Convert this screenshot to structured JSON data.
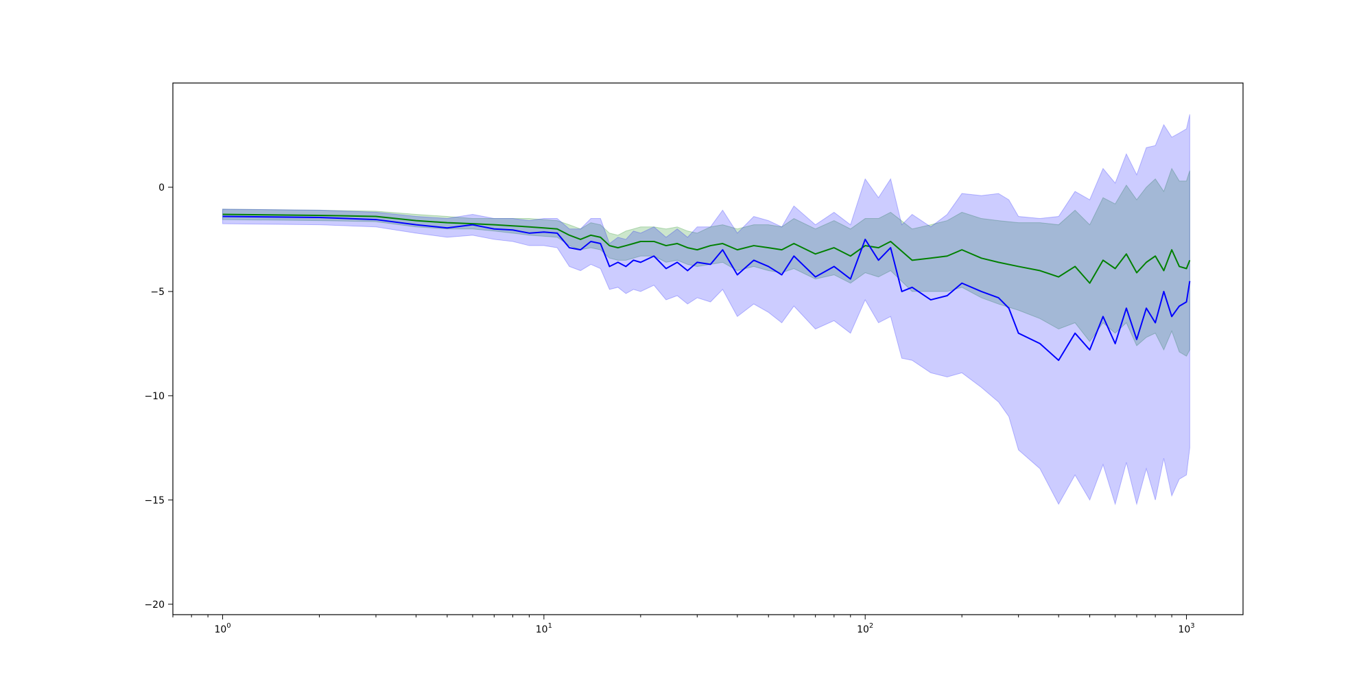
{
  "chart_data": {
    "type": "line",
    "title": "",
    "xlabel": "",
    "ylabel": "",
    "xscale": "log",
    "xlim": [
      0.7,
      1500
    ],
    "ylim": [
      -20.5,
      5.0
    ],
    "grid": false,
    "legend": "none",
    "x_ticks": [
      {
        "value": 1,
        "base": "10",
        "exp": "0"
      },
      {
        "value": 10,
        "base": "10",
        "exp": "1"
      },
      {
        "value": 100,
        "base": "10",
        "exp": "2"
      },
      {
        "value": 1000,
        "base": "10",
        "exp": "3"
      }
    ],
    "y_ticks": [
      {
        "value": 0,
        "label": "0"
      },
      {
        "value": -5,
        "label": "−5"
      },
      {
        "value": -10,
        "label": "−10"
      },
      {
        "value": -15,
        "label": "−15"
      },
      {
        "value": -20,
        "label": "−20"
      }
    ],
    "series": [
      {
        "color": "#008000",
        "band_color": "#008000",
        "band_opacity": 0.2,
        "line_width": 2,
        "x": [
          1,
          2,
          3,
          4,
          5,
          6,
          7,
          8,
          9,
          10,
          11,
          12,
          13,
          14,
          15,
          16,
          17,
          18,
          19,
          20,
          22,
          24,
          26,
          28,
          30,
          33,
          36,
          40,
          45,
          50,
          55,
          60,
          70,
          80,
          90,
          100,
          110,
          120,
          140,
          160,
          180,
          200,
          230,
          260,
          300,
          350,
          400,
          450,
          500,
          550,
          600,
          650,
          700,
          750,
          800,
          850,
          900,
          950,
          1000,
          1024
        ],
        "y": [
          -1.3,
          -1.35,
          -1.4,
          -1.6,
          -1.7,
          -1.75,
          -1.8,
          -1.85,
          -1.9,
          -1.95,
          -2.0,
          -2.3,
          -2.5,
          -2.3,
          -2.4,
          -2.8,
          -2.9,
          -2.8,
          -2.7,
          -2.6,
          -2.6,
          -2.8,
          -2.7,
          -2.9,
          -3.0,
          -2.8,
          -2.7,
          -3.0,
          -2.8,
          -2.9,
          -3.0,
          -2.7,
          -3.2,
          -2.9,
          -3.3,
          -2.8,
          -2.9,
          -2.6,
          -3.5,
          -3.4,
          -3.3,
          -3.0,
          -3.4,
          -3.6,
          -3.8,
          -4.0,
          -4.3,
          -3.8,
          -4.6,
          -3.5,
          -3.9,
          -3.2,
          -4.1,
          -3.6,
          -3.3,
          -4.0,
          -3.0,
          -3.8,
          -3.9,
          -3.5
        ],
        "lower": [
          -1.55,
          -1.6,
          -1.65,
          -1.9,
          -2.0,
          -2.0,
          -2.1,
          -2.2,
          -2.3,
          -2.35,
          -2.4,
          -2.8,
          -3.0,
          -2.9,
          -3.0,
          -3.4,
          -3.5,
          -3.5,
          -3.4,
          -3.3,
          -3.3,
          -3.6,
          -3.5,
          -3.7,
          -3.8,
          -3.7,
          -3.6,
          -4.0,
          -3.8,
          -4.0,
          -4.1,
          -3.9,
          -4.4,
          -4.2,
          -4.6,
          -4.1,
          -4.3,
          -4.0,
          -5.0,
          -5.0,
          -5.0,
          -4.8,
          -5.3,
          -5.6,
          -5.9,
          -6.3,
          -6.8,
          -6.5,
          -7.4,
          -6.5,
          -7.0,
          -6.5,
          -7.6,
          -7.2,
          -7.0,
          -7.8,
          -6.9,
          -7.9,
          -8.1,
          -7.8
        ],
        "upper": [
          -1.05,
          -1.1,
          -1.15,
          -1.3,
          -1.4,
          -1.5,
          -1.5,
          -1.5,
          -1.5,
          -1.55,
          -1.6,
          -1.8,
          -2.0,
          -1.7,
          -1.8,
          -2.2,
          -2.3,
          -2.1,
          -2.0,
          -1.9,
          -1.9,
          -2.0,
          -1.9,
          -2.1,
          -2.2,
          -1.9,
          -1.8,
          -2.0,
          -1.8,
          -1.8,
          -1.9,
          -1.5,
          -2.0,
          -1.6,
          -2.0,
          -1.5,
          -1.5,
          -1.2,
          -2.0,
          -1.8,
          -1.6,
          -1.2,
          -1.5,
          -1.6,
          -1.7,
          -1.7,
          -1.8,
          -1.1,
          -1.8,
          -0.5,
          -0.8,
          0.1,
          -0.6,
          0.0,
          0.4,
          -0.2,
          0.9,
          0.3,
          0.3,
          0.8
        ]
      },
      {
        "color": "#0000ff",
        "band_color": "#0000ff",
        "band_opacity": 0.2,
        "line_width": 2,
        "x": [
          1,
          2,
          3,
          4,
          5,
          6,
          7,
          8,
          9,
          10,
          11,
          12,
          13,
          14,
          15,
          16,
          17,
          18,
          19,
          20,
          22,
          24,
          26,
          28,
          30,
          33,
          36,
          40,
          45,
          50,
          55,
          60,
          70,
          80,
          90,
          100,
          110,
          120,
          130,
          140,
          160,
          180,
          200,
          230,
          260,
          280,
          300,
          350,
          400,
          450,
          500,
          550,
          600,
          650,
          700,
          750,
          800,
          850,
          900,
          950,
          1000,
          1024
        ],
        "y": [
          -1.4,
          -1.45,
          -1.55,
          -1.8,
          -1.95,
          -1.8,
          -2.0,
          -2.05,
          -2.2,
          -2.15,
          -2.2,
          -2.9,
          -3.0,
          -2.6,
          -2.7,
          -3.8,
          -3.6,
          -3.8,
          -3.5,
          -3.6,
          -3.3,
          -3.9,
          -3.6,
          -4.0,
          -3.6,
          -3.7,
          -3.0,
          -4.2,
          -3.5,
          -3.8,
          -4.2,
          -3.3,
          -4.3,
          -3.8,
          -4.4,
          -2.5,
          -3.5,
          -2.9,
          -5.0,
          -4.8,
          -5.4,
          -5.2,
          -4.6,
          -5.0,
          -5.3,
          -5.8,
          -7.0,
          -7.5,
          -8.3,
          -7.0,
          -7.8,
          -6.2,
          -7.5,
          -5.8,
          -7.3,
          -5.8,
          -6.5,
          -5.0,
          -6.2,
          -5.7,
          -5.5,
          -4.5
        ],
        "lower": [
          -1.75,
          -1.8,
          -1.9,
          -2.2,
          -2.4,
          -2.3,
          -2.5,
          -2.6,
          -2.8,
          -2.8,
          -2.9,
          -3.8,
          -4.0,
          -3.7,
          -3.9,
          -4.9,
          -4.8,
          -5.1,
          -4.9,
          -5.0,
          -4.7,
          -5.4,
          -5.2,
          -5.6,
          -5.3,
          -5.5,
          -4.9,
          -6.2,
          -5.6,
          -6.0,
          -6.5,
          -5.7,
          -6.8,
          -6.4,
          -7.0,
          -5.4,
          -6.5,
          -6.2,
          -8.2,
          -8.3,
          -8.9,
          -9.1,
          -8.9,
          -9.6,
          -10.3,
          -11.0,
          -12.6,
          -13.5,
          -15.2,
          -13.8,
          -15.0,
          -13.3,
          -15.2,
          -13.2,
          -15.2,
          -13.5,
          -15.0,
          -13.0,
          -14.8,
          -14.0,
          -13.8,
          -12.5
        ],
        "upper": [
          -1.05,
          -1.1,
          -1.2,
          -1.4,
          -1.5,
          -1.3,
          -1.5,
          -1.5,
          -1.6,
          -1.5,
          -1.5,
          -2.0,
          -2.0,
          -1.5,
          -1.5,
          -2.7,
          -2.4,
          -2.5,
          -2.1,
          -2.2,
          -1.9,
          -2.4,
          -2.0,
          -2.4,
          -1.9,
          -1.9,
          -1.1,
          -2.2,
          -1.4,
          -1.6,
          -1.9,
          -0.9,
          -1.8,
          -1.2,
          -1.8,
          0.4,
          -0.5,
          0.4,
          -1.8,
          -1.3,
          -1.9,
          -1.3,
          -0.3,
          -0.4,
          -0.3,
          -0.6,
          -1.4,
          -1.5,
          -1.4,
          -0.2,
          -0.6,
          0.9,
          0.2,
          1.6,
          0.6,
          1.9,
          2.0,
          3.0,
          2.4,
          2.6,
          2.8,
          3.5
        ]
      }
    ]
  }
}
